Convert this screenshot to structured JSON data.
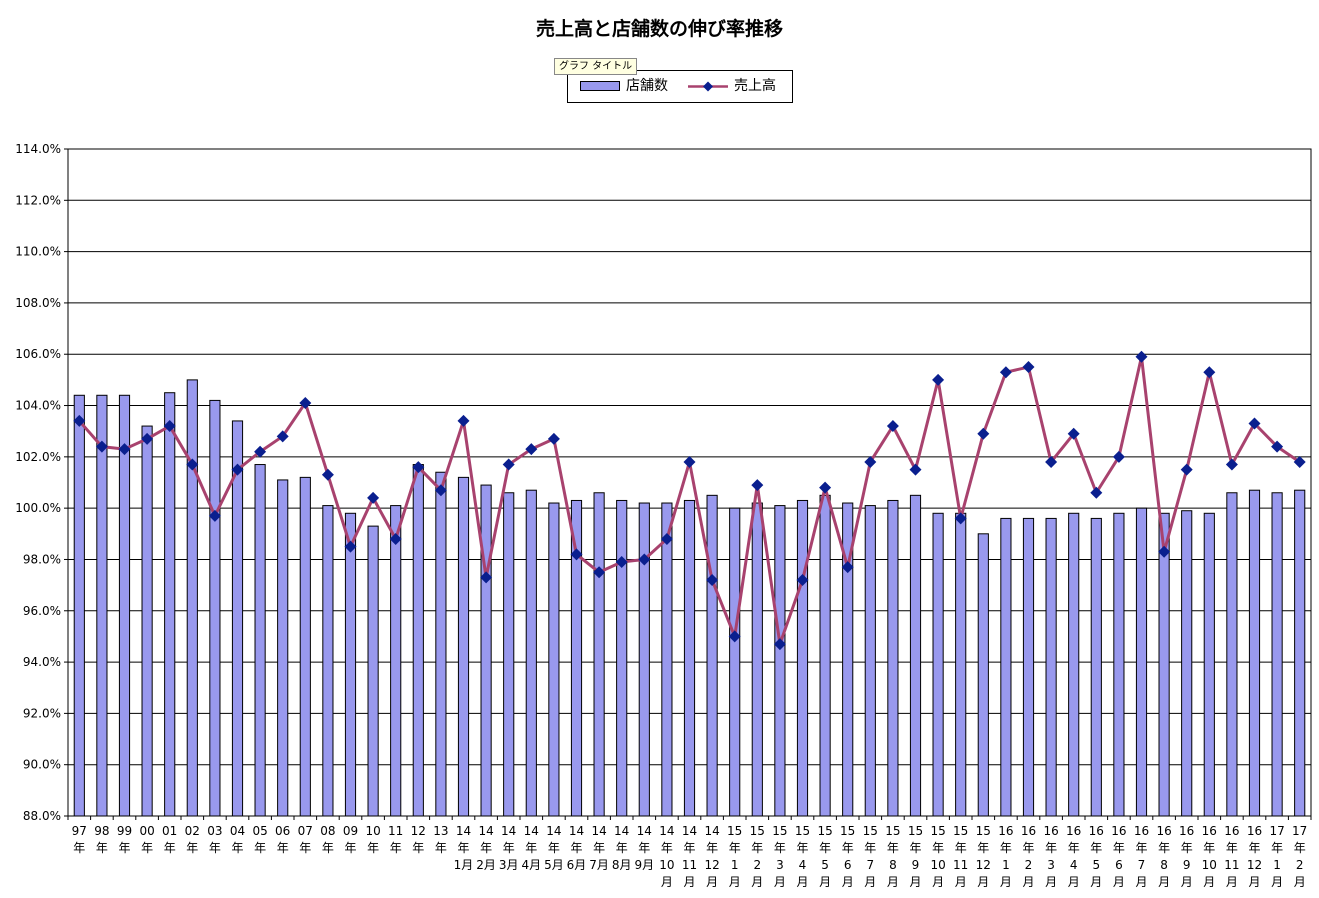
{
  "tooltip": "グラフ タイトル",
  "chart_data": {
    "type": "bar",
    "title": "売上高と店舗数の伸び率推移",
    "legend_position": "top-center",
    "grid": true,
    "ylim": [
      88.0,
      114.0
    ],
    "ytick_labels": [
      "88.0%",
      "90.0%",
      "92.0%",
      "94.0%",
      "96.0%",
      "98.0%",
      "100.0%",
      "102.0%",
      "104.0%",
      "106.0%",
      "108.0%",
      "110.0%",
      "112.0%",
      "114.0%"
    ],
    "colors": {
      "bar": "#9999ee",
      "line": "#a8426e",
      "marker": "#0a1f8f"
    },
    "categories": [
      [
        "97",
        "年"
      ],
      [
        "98",
        "年"
      ],
      [
        "99",
        "年"
      ],
      [
        "00",
        "年"
      ],
      [
        "01",
        "年"
      ],
      [
        "02",
        "年"
      ],
      [
        "03",
        "年"
      ],
      [
        "04",
        "年"
      ],
      [
        "05",
        "年"
      ],
      [
        "06",
        "年"
      ],
      [
        "07",
        "年"
      ],
      [
        "08",
        "年"
      ],
      [
        "09",
        "年"
      ],
      [
        "10",
        "年"
      ],
      [
        "11",
        "年"
      ],
      [
        "12",
        "年"
      ],
      [
        "13",
        "年"
      ],
      [
        "14",
        "年",
        "1月"
      ],
      [
        "14",
        "年",
        "2月"
      ],
      [
        "14",
        "年",
        "3月"
      ],
      [
        "14",
        "年",
        "4月"
      ],
      [
        "14",
        "年",
        "5月"
      ],
      [
        "14",
        "年",
        "6月"
      ],
      [
        "14",
        "年",
        "7月"
      ],
      [
        "14",
        "年",
        "8月"
      ],
      [
        "14",
        "年",
        "9月"
      ],
      [
        "14",
        "年",
        "10",
        "月"
      ],
      [
        "14",
        "年",
        "11",
        "月"
      ],
      [
        "14",
        "年",
        "12",
        "月"
      ],
      [
        "15",
        "年",
        "1",
        "月"
      ],
      [
        "15",
        "年",
        "2",
        "月"
      ],
      [
        "15",
        "年",
        "3",
        "月"
      ],
      [
        "15",
        "年",
        "4",
        "月"
      ],
      [
        "15",
        "年",
        "5",
        "月"
      ],
      [
        "15",
        "年",
        "6",
        "月"
      ],
      [
        "15",
        "年",
        "7",
        "月"
      ],
      [
        "15",
        "年",
        "8",
        "月"
      ],
      [
        "15",
        "年",
        "9",
        "月"
      ],
      [
        "15",
        "年",
        "10",
        "月"
      ],
      [
        "15",
        "年",
        "11",
        "月"
      ],
      [
        "15",
        "年",
        "12",
        "月"
      ],
      [
        "16",
        "年",
        "1",
        "月"
      ],
      [
        "16",
        "年",
        "2",
        "月"
      ],
      [
        "16",
        "年",
        "3",
        "月"
      ],
      [
        "16",
        "年",
        "4",
        "月"
      ],
      [
        "16",
        "年",
        "5",
        "月"
      ],
      [
        "16",
        "年",
        "6",
        "月"
      ],
      [
        "16",
        "年",
        "7",
        "月"
      ],
      [
        "16",
        "年",
        "8",
        "月"
      ],
      [
        "16",
        "年",
        "9",
        "月"
      ],
      [
        "16",
        "年",
        "10",
        "月"
      ],
      [
        "16",
        "年",
        "11",
        "月"
      ],
      [
        "16",
        "年",
        "12",
        "月"
      ],
      [
        "17",
        "年",
        "1",
        "月"
      ],
      [
        "17",
        "年",
        "2",
        "月"
      ]
    ],
    "series": [
      {
        "name": "店舗数",
        "type": "bar",
        "values": [
          104.4,
          104.4,
          104.4,
          103.2,
          104.5,
          105.0,
          104.2,
          103.4,
          101.7,
          101.1,
          101.2,
          100.1,
          99.8,
          99.3,
          100.1,
          101.7,
          101.4,
          101.2,
          100.9,
          100.6,
          100.7,
          100.2,
          100.3,
          100.6,
          100.3,
          100.2,
          100.2,
          100.3,
          100.5,
          100.0,
          100.2,
          100.1,
          100.3,
          100.5,
          100.2,
          100.1,
          100.3,
          100.5,
          99.8,
          99.8,
          99.0,
          99.6,
          99.6,
          99.6,
          99.8,
          99.6,
          99.8,
          100.0,
          99.8,
          99.9,
          99.8,
          100.6,
          100.7,
          100.6,
          100.7
        ]
      },
      {
        "name": "売上高",
        "type": "line",
        "values": [
          103.4,
          102.4,
          102.3,
          102.7,
          103.2,
          101.7,
          99.7,
          101.5,
          102.2,
          102.8,
          104.1,
          101.3,
          98.5,
          100.4,
          98.8,
          101.6,
          100.7,
          103.4,
          97.3,
          101.7,
          102.3,
          102.7,
          98.2,
          97.5,
          97.9,
          98.0,
          98.8,
          101.8,
          97.2,
          95.0,
          100.9,
          94.7,
          97.2,
          100.8,
          97.7,
          101.8,
          103.2,
          101.5,
          105.0,
          99.6,
          102.9,
          105.3,
          105.5,
          101.8,
          102.9,
          100.6,
          102.0,
          105.9,
          98.3,
          101.5,
          105.3,
          101.7,
          103.3,
          102.4,
          101.8
        ]
      }
    ]
  }
}
